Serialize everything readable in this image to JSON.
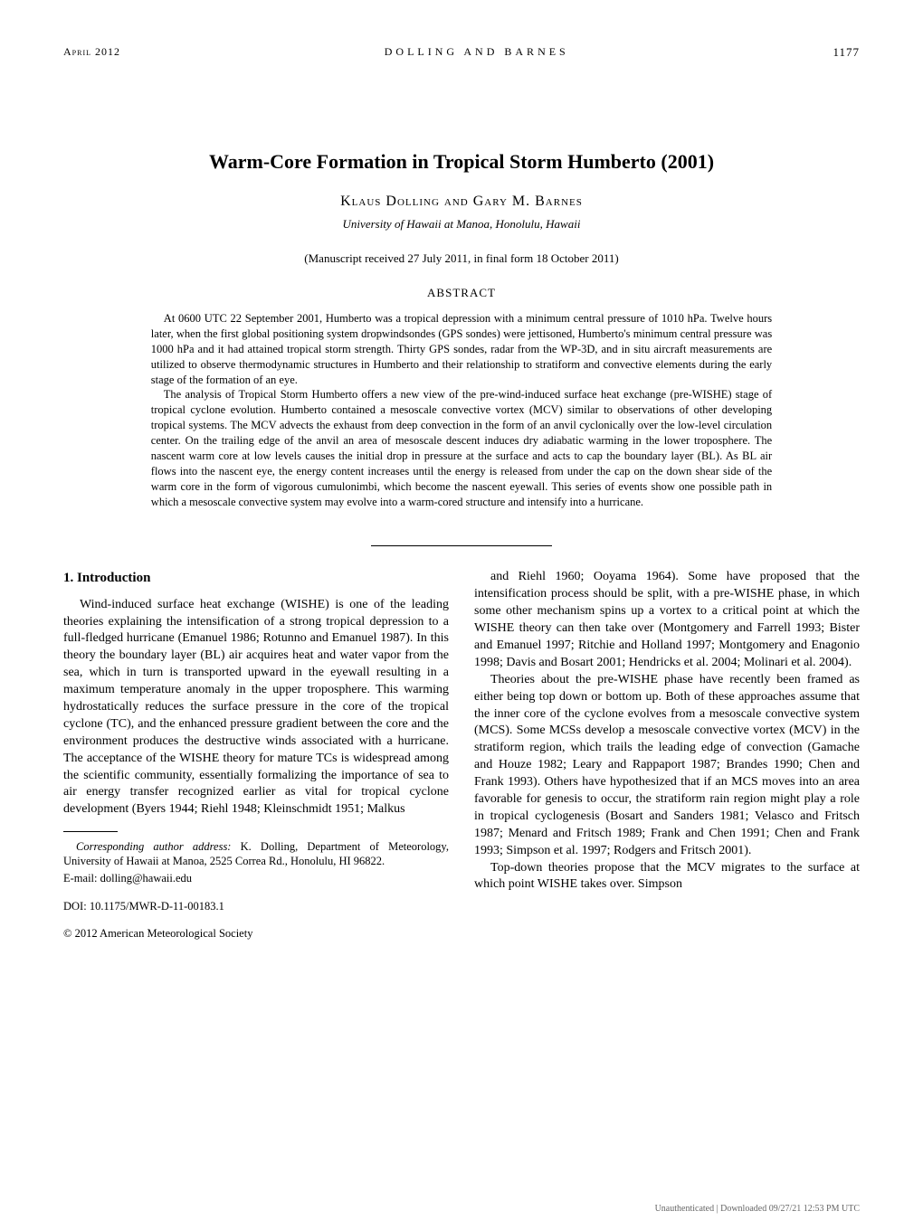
{
  "header": {
    "date": "April 2012",
    "authors_running": "DOLLING AND BARNES",
    "page": "1177"
  },
  "title": "Warm-Core Formation in Tropical Storm Humberto (2001)",
  "authors": "Klaus Dolling and Gary M. Barnes",
  "affiliation": "University of Hawaii at Manoa, Honolulu, Hawaii",
  "received": "(Manuscript received 27 July 2011, in final form 18 October 2011)",
  "abstract_heading": "ABSTRACT",
  "abstract": {
    "p1": "At 0600 UTC 22 September 2001, Humberto was a tropical depression with a minimum central pressure of 1010 hPa. Twelve hours later, when the first global positioning system dropwindsondes (GPS sondes) were jettisoned, Humberto's minimum central pressure was 1000 hPa and it had attained tropical storm strength. Thirty GPS sondes, radar from the WP-3D, and in situ aircraft measurements are utilized to observe thermodynamic structures in Humberto and their relationship to stratiform and convective elements during the early stage of the formation of an eye.",
    "p2": "The analysis of Tropical Storm Humberto offers a new view of the pre-wind-induced surface heat exchange (pre-WISHE) stage of tropical cyclone evolution. Humberto contained a mesoscale convective vortex (MCV) similar to observations of other developing tropical systems. The MCV advects the exhaust from deep convection in the form of an anvil cyclonically over the low-level circulation center. On the trailing edge of the anvil an area of mesoscale descent induces dry adiabatic warming in the lower troposphere. The nascent warm core at low levels causes the initial drop in pressure at the surface and acts to cap the boundary layer (BL). As BL air flows into the nascent eye, the energy content increases until the energy is released from under the cap on the down shear side of the warm core in the form of vigorous cumulonimbi, which become the nascent eyewall. This series of events show one possible path in which a mesoscale convective system may evolve into a warm-cored structure and intensify into a hurricane."
  },
  "section1_heading": "1. Introduction",
  "col_left": {
    "p1": "Wind-induced surface heat exchange (WISHE) is one of the leading theories explaining the intensification of a strong tropical depression to a full-fledged hurricane (Emanuel 1986; Rotunno and Emanuel 1987). In this theory the boundary layer (BL) air acquires heat and water vapor from the sea, which in turn is transported upward in the eyewall resulting in a maximum temperature anomaly in the upper troposphere. This warming hydrostatically reduces the surface pressure in the core of the tropical cyclone (TC), and the enhanced pressure gradient between the core and the environment produces the destructive winds associated with a hurricane. The acceptance of the WISHE theory for mature TCs is widespread among the scientific community, essentially formalizing the importance of sea to air energy transfer recognized earlier as vital for tropical cyclone development (Byers 1944; Riehl 1948; Kleinschmidt 1951; Malkus"
  },
  "col_right": {
    "p1": "and Riehl 1960; Ooyama 1964). Some have proposed that the intensification process should be split, with a pre-WISHE phase, in which some other mechanism spins up a vortex to a critical point at which the WISHE theory can then take over (Montgomery and Farrell 1993; Bister and Emanuel 1997; Ritchie and Holland 1997; Montgomery and Enagonio 1998; Davis and Bosart 2001; Hendricks et al. 2004; Molinari et al. 2004).",
    "p2": "Theories about the pre-WISHE phase have recently been framed as either being top down or bottom up. Both of these approaches assume that the inner core of the cyclone evolves from a mesoscale convective system (MCS). Some MCSs develop a mesoscale convective vortex (MCV) in the stratiform region, which trails the leading edge of convection (Gamache and Houze 1982; Leary and Rappaport 1987; Brandes 1990; Chen and Frank 1993). Others have hypothesized that if an MCS moves into an area favorable for genesis to occur, the stratiform rain region might play a role in tropical cyclogenesis (Bosart and Sanders 1981; Velasco and Fritsch 1987; Menard and Fritsch 1989; Frank and Chen 1991; Chen and Frank 1993; Simpson et al. 1997; Rodgers and Fritsch 2001).",
    "p3": "Top-down theories propose that the MCV migrates to the surface at which point WISHE takes over. Simpson"
  },
  "corr_label": "Corresponding author address:",
  "corr_text": " K. Dolling, Department of Meteorology, University of Hawaii at Manoa, 2525 Correa Rd., Honolulu, HI 96822.",
  "email": "E-mail: dolling@hawaii.edu",
  "doi": "DOI: 10.1175/MWR-D-11-00183.1",
  "copyright": "© 2012 American Meteorological Society",
  "footer": "Unauthenticated | Downloaded 09/27/21 12:53 PM UTC"
}
